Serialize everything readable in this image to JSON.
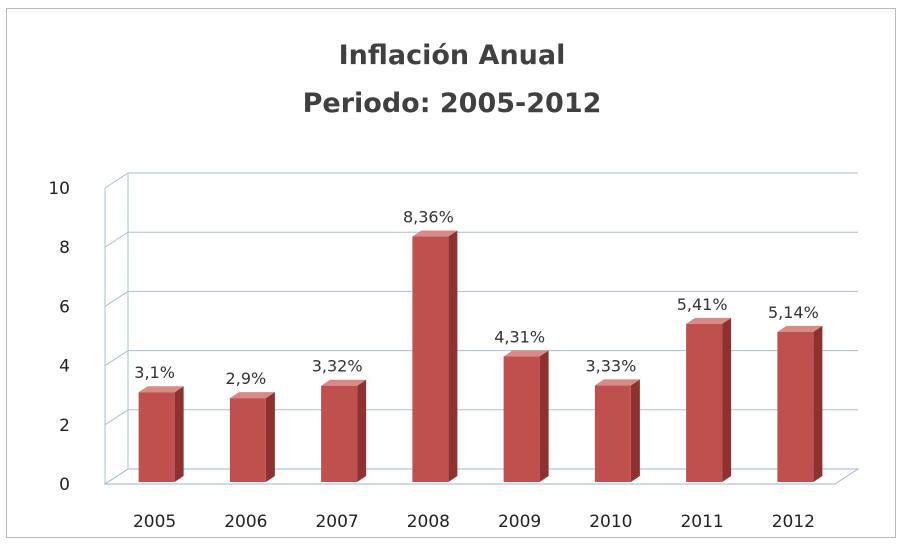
{
  "chart_data": {
    "type": "bar",
    "title": "Inflación Anual",
    "subtitle": "Periodo: 2005-2012",
    "categories": [
      "2005",
      "2006",
      "2007",
      "2008",
      "2009",
      "2010",
      "2011",
      "2012"
    ],
    "values": [
      3.1,
      2.9,
      3.32,
      8.36,
      4.31,
      3.33,
      5.41,
      5.14
    ],
    "data_labels": [
      "3,1%",
      "2,9%",
      "3,32%",
      "8,36%",
      "4,31%",
      "3,33%",
      "5,41%",
      "5,14%"
    ],
    "y_ticks": [
      "0",
      "2",
      "4",
      "6",
      "8",
      "10"
    ],
    "ylim": [
      0,
      10
    ],
    "grid": true,
    "legend": "none",
    "style": "3d-column",
    "bar_color": "#c0504d",
    "bar_side_color": "#8e3230",
    "bar_top_color": "#d88a87"
  }
}
